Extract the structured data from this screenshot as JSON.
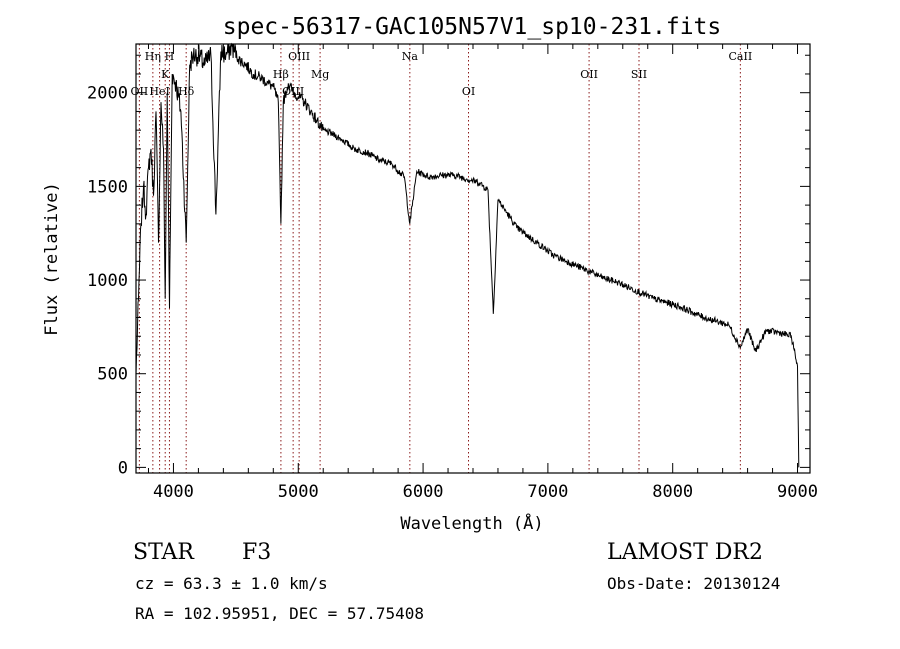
{
  "chart_data": {
    "type": "line",
    "title": "spec-56317-GAC105N57V1_sp10-231.fits",
    "xlabel": "Wavelength (Å)",
    "ylabel": "Flux (relative)",
    "xlim": [
      3700,
      9100
    ],
    "ylim": [
      -30,
      2260
    ],
    "xticks": [
      4000,
      5000,
      6000,
      7000,
      8000,
      9000
    ],
    "yticks": [
      0,
      500,
      1000,
      1500,
      2000
    ],
    "grid": false,
    "line_color": "#000000",
    "marker_color": "#8b1a1a",
    "lines": [
      {
        "label": "OII",
        "wave": 3727,
        "row": 2
      },
      {
        "label": "Hη",
        "wave": 3835,
        "row": 0
      },
      {
        "label": "HeI",
        "wave": 3889,
        "row": 2
      },
      {
        "label": "K",
        "wave": 3934,
        "row": 1
      },
      {
        "label": "H",
        "wave": 3968,
        "row": 0
      },
      {
        "label": "Hδ",
        "wave": 4102,
        "row": 2
      },
      {
        "label": "Hβ",
        "wave": 4861,
        "row": 1
      },
      {
        "label": "OIII",
        "wave": 4959,
        "row": 2
      },
      {
        "label": "OIII",
        "wave": 5007,
        "row": 0
      },
      {
        "label": "Mg",
        "wave": 5175,
        "row": 1
      },
      {
        "label": "Na",
        "wave": 5894,
        "row": 0
      },
      {
        "label": "OI",
        "wave": 6364,
        "row": 2
      },
      {
        "label": "OII",
        "wave": 7330,
        "row": 1
      },
      {
        "label": "SII",
        "wave": 7730,
        "row": 1
      },
      {
        "label": "CaII",
        "wave": 8542,
        "row": 0
      }
    ],
    "spectrum": {
      "x": [
        3700,
        3720,
        3740,
        3760,
        3780,
        3800,
        3820,
        3840,
        3860,
        3880,
        3900,
        3920,
        3934,
        3950,
        3968,
        3990,
        4020,
        4060,
        4102,
        4130,
        4160,
        4200,
        4250,
        4300,
        4340,
        4380,
        4420,
        4470,
        4520,
        4580,
        4640,
        4700,
        4760,
        4800,
        4840,
        4861,
        4880,
        4920,
        4960,
        5000,
        5050,
        5100,
        5150,
        5200,
        5270,
        5350,
        5450,
        5550,
        5650,
        5750,
        5850,
        5894,
        5950,
        6050,
        6150,
        6250,
        6350,
        6450,
        6520,
        6563,
        6600,
        6650,
        6750,
        6850,
        6950,
        7050,
        7150,
        7250,
        7350,
        7450,
        7550,
        7650,
        7750,
        7850,
        7950,
        8050,
        8150,
        8250,
        8350,
        8450,
        8542,
        8600,
        8662,
        8750,
        8850,
        8950,
        9000,
        9010
      ],
      "y": [
        500,
        900,
        1300,
        1500,
        1350,
        1600,
        1700,
        1450,
        1900,
        1200,
        1950,
        1700,
        900,
        2000,
        850,
        2100,
        2050,
        1900,
        1200,
        2150,
        2200,
        2200,
        2150,
        2200,
        1350,
        2220,
        2200,
        2250,
        2180,
        2150,
        2100,
        2080,
        2050,
        2030,
        1950,
        1300,
        1950,
        2050,
        2000,
        1980,
        1950,
        1900,
        1850,
        1800,
        1780,
        1750,
        1700,
        1680,
        1640,
        1620,
        1550,
        1300,
        1580,
        1550,
        1560,
        1560,
        1540,
        1520,
        1480,
        820,
        1430,
        1380,
        1280,
        1230,
        1180,
        1130,
        1100,
        1070,
        1040,
        1010,
        990,
        960,
        930,
        900,
        880,
        860,
        830,
        800,
        780,
        760,
        640,
        740,
        620,
        730,
        720,
        700,
        540,
        0
      ]
    }
  },
  "footer": {
    "object_type": "STAR",
    "subclass": "F3",
    "survey": "LAMOST DR2",
    "velocity": "cz = 63.3 ± 1.0 km/s",
    "obs_date": "Obs-Date: 20130124",
    "coords": "RA = 102.95951, DEC =  57.75408"
  }
}
